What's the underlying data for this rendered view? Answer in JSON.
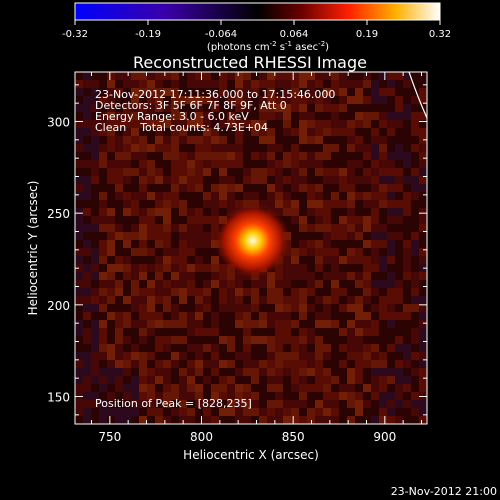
{
  "chart_data": {
    "type": "heatmap",
    "title": "Reconstructed RHESSI Image",
    "xlabel": "Heliocentric X (arcsec)",
    "ylabel": "Heliocentric Y (arcsec)",
    "xlim": [
      731,
      923
    ],
    "ylim": [
      135,
      327
    ],
    "xticks": [
      750,
      800,
      850,
      900
    ],
    "yticks": [
      150,
      200,
      250,
      300
    ],
    "peak": {
      "x": 828,
      "y": 235,
      "sigma": 12
    },
    "colormap": "blue-white-red",
    "colorbar": {
      "min": -0.32,
      "max": 0.32,
      "ticks": [
        "-0.32",
        "-0.19",
        "-0.064",
        "0.064",
        "0.19",
        "0.32"
      ],
      "unit_label": "(photons cm",
      "unit_exp1": "-2",
      "unit_mid": " s",
      "unit_exp2": "-1",
      "unit_mid2": " asec",
      "unit_exp3": "-2",
      "unit_close": ")"
    },
    "annotations": [
      "23-Nov-2012 17:11:36.000 to 17:15:46.000",
      "Detectors: 3F 5F 6F 7F 8F 9F, Att 0",
      "Energy Range: 3.0 - 6.0 keV",
      "Clean    Total counts: 4.73E+04"
    ],
    "peak_label": "Position of Peak = [828,235]",
    "limb_arc": true
  },
  "footer_timestamp": "23-Nov-2012 21:00",
  "colors": {
    "background": "#000000",
    "text": "#ffffff",
    "limb": "#ffffff"
  }
}
